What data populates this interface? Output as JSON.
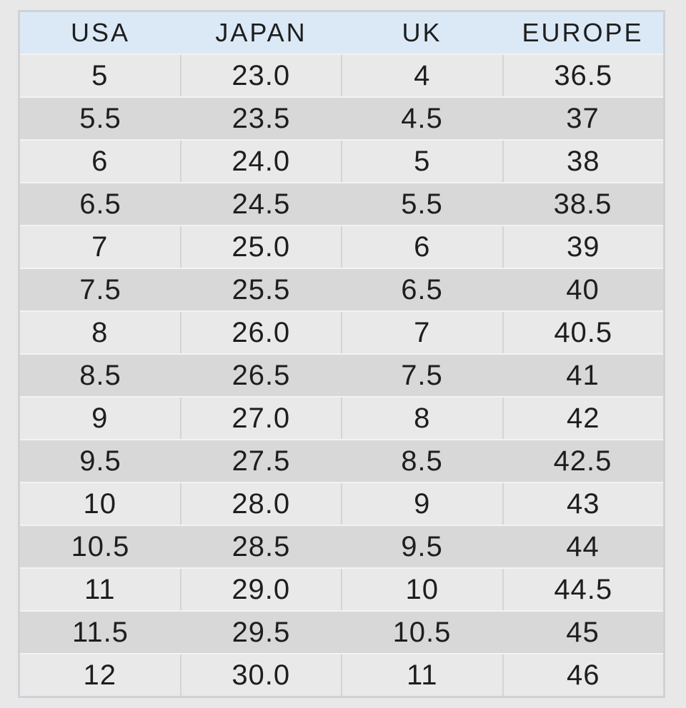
{
  "table": {
    "headers": [
      "USA",
      "JAPAN",
      "UK",
      "EUROPE"
    ],
    "rows": [
      [
        "5",
        "23.0",
        "4",
        "36.5"
      ],
      [
        "5.5",
        "23.5",
        "4.5",
        "37"
      ],
      [
        "6",
        "24.0",
        "5",
        "38"
      ],
      [
        "6.5",
        "24.5",
        "5.5",
        "38.5"
      ],
      [
        "7",
        "25.0",
        "6",
        "39"
      ],
      [
        "7.5",
        "25.5",
        "6.5",
        "40"
      ],
      [
        "8",
        "26.0",
        "7",
        "40.5"
      ],
      [
        "8.5",
        "26.5",
        "7.5",
        "41"
      ],
      [
        "9",
        "27.0",
        "8",
        "42"
      ],
      [
        "9.5",
        "27.5",
        "8.5",
        "42.5"
      ],
      [
        "10",
        "28.0",
        "9",
        "43"
      ],
      [
        "10.5",
        "28.5",
        "9.5",
        "44"
      ],
      [
        "11",
        "29.0",
        "10",
        "44.5"
      ],
      [
        "11.5",
        "29.5",
        "10.5",
        "45"
      ],
      [
        "12",
        "30.0",
        "11",
        "46"
      ]
    ]
  },
  "colors": {
    "page_bg": "#e8e8e8",
    "header_bg": "#dbe9f7",
    "row_light": "#e9e9e9",
    "row_dark": "#d8d8d8",
    "divider": "#d4d4d4",
    "row_gap": "#f3f3f3",
    "border": "#cfd2d5",
    "text": "#1e1e1e"
  }
}
